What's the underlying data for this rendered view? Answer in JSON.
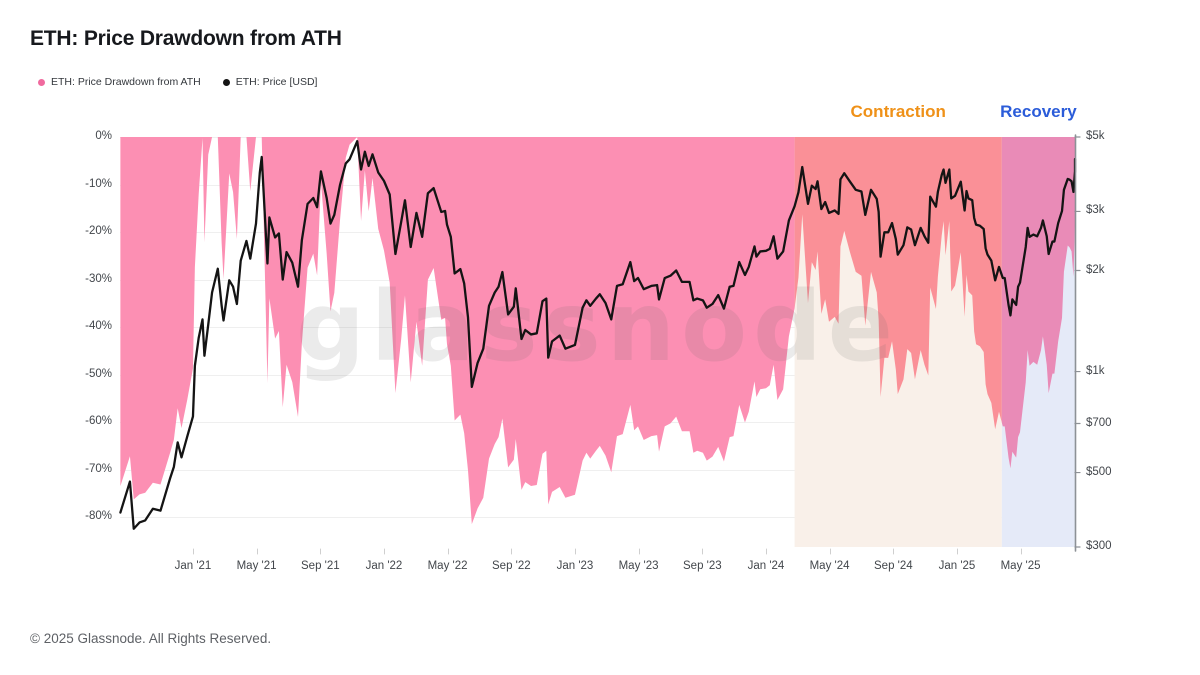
{
  "title": "ETH: Price Drawdown from ATH",
  "footer": "© 2025 Glassnode. All Rights Reserved.",
  "watermark": "glassnode",
  "legend": {
    "drawdown": {
      "label": "ETH: Price Drawdown from ATH",
      "color": "#f06a9e"
    },
    "price": {
      "label": "ETH: Price [USD]",
      "color": "#141414"
    }
  },
  "phases": [
    {
      "label": "Contraction",
      "text_color": "#ef9118",
      "band_color": "#f9f0e9",
      "area_color": "#fa9097",
      "t_start": 2024.15,
      "t_end": 2025.235
    },
    {
      "label": "Recovery",
      "text_color": "#2b5cd9",
      "band_color": "#e5eaf8",
      "area_color": "#e98bb7",
      "t_start": 2025.235,
      "t_end": 2025.618
    }
  ],
  "chart_data": {
    "type": "area+line",
    "title": "ETH: Price Drawdown from ATH",
    "grid": true,
    "x_range_decimal_years": [
      2020.618,
      2025.618
    ],
    "x_ticks": [
      {
        "label": "Jan '21",
        "t": 2021.0
      },
      {
        "label": "May '21",
        "t": 2021.333
      },
      {
        "label": "Sep '21",
        "t": 2021.667
      },
      {
        "label": "Jan '22",
        "t": 2022.0
      },
      {
        "label": "May '22",
        "t": 2022.333
      },
      {
        "label": "Sep '22",
        "t": 2022.667
      },
      {
        "label": "Jan '23",
        "t": 2023.0
      },
      {
        "label": "May '23",
        "t": 2023.333
      },
      {
        "label": "Sep '23",
        "t": 2023.667
      },
      {
        "label": "Jan '24",
        "t": 2024.0
      },
      {
        "label": "May '24",
        "t": 2024.333
      },
      {
        "label": "Sep '24",
        "t": 2024.667
      },
      {
        "label": "Jan '25",
        "t": 2025.0
      },
      {
        "label": "May '25",
        "t": 2025.333
      }
    ],
    "y_left": {
      "name": "Price Drawdown from ATH",
      "unit": "%",
      "ticks": [
        {
          "label": "0%",
          "value": 0
        },
        {
          "label": "-10%",
          "value": -10
        },
        {
          "label": "-20%",
          "value": -20
        },
        {
          "label": "-30%",
          "value": -30
        },
        {
          "label": "-40%",
          "value": -40
        },
        {
          "label": "-50%",
          "value": -50
        },
        {
          "label": "-60%",
          "value": -60
        },
        {
          "label": "-70%",
          "value": -70
        },
        {
          "label": "-80%",
          "value": -80
        }
      ],
      "range": [
        0,
        -86.3
      ]
    },
    "y_right": {
      "name": "ETH Price",
      "unit": "USD",
      "scale": "log",
      "ticks": [
        {
          "label": "$5k",
          "value": 5000
        },
        {
          "label": "$3k",
          "value": 3000
        },
        {
          "label": "$2k",
          "value": 2000
        },
        {
          "label": "$1k",
          "value": 1000
        },
        {
          "label": "$700",
          "value": 700
        },
        {
          "label": "$500",
          "value": 500
        },
        {
          "label": "$300",
          "value": 300
        }
      ],
      "range": [
        300,
        5000
      ]
    },
    "series": [
      {
        "name": "ETH: Price Drawdown from ATH",
        "type": "area",
        "unit": "%",
        "color_default": "#fc8fb3",
        "derived": "drawdown = price / running_ath - 1, running_ath seeded with initial_ath_usd",
        "initial_ath_usd": 1433
      },
      {
        "name": "ETH: Price [USD]",
        "type": "line",
        "color": "#141414",
        "points_format": [
          "decimal_year",
          "usd"
        ],
        "points": [
          [
            2020.62,
            380
          ],
          [
            2020.67,
            470
          ],
          [
            2020.69,
            340
          ],
          [
            2020.72,
            355
          ],
          [
            2020.75,
            360
          ],
          [
            2020.79,
            390
          ],
          [
            2020.83,
            385
          ],
          [
            2020.88,
            480
          ],
          [
            2020.9,
            520
          ],
          [
            2020.92,
            615
          ],
          [
            2020.94,
            555
          ],
          [
            2020.97,
            640
          ],
          [
            2021.0,
            735
          ],
          [
            2021.01,
            1040
          ],
          [
            2021.03,
            1260
          ],
          [
            2021.05,
            1430
          ],
          [
            2021.06,
            1115
          ],
          [
            2021.08,
            1380
          ],
          [
            2021.1,
            1720
          ],
          [
            2021.13,
            2025
          ],
          [
            2021.15,
            1575
          ],
          [
            2021.16,
            1420
          ],
          [
            2021.19,
            1870
          ],
          [
            2021.21,
            1790
          ],
          [
            2021.23,
            1590
          ],
          [
            2021.25,
            2140
          ],
          [
            2021.28,
            2450
          ],
          [
            2021.3,
            2170
          ],
          [
            2021.33,
            2760
          ],
          [
            2021.35,
            3920
          ],
          [
            2021.36,
            4360
          ],
          [
            2021.39,
            2100
          ],
          [
            2021.4,
            2880
          ],
          [
            2021.43,
            2510
          ],
          [
            2021.45,
            2580
          ],
          [
            2021.47,
            1880
          ],
          [
            2021.49,
            2270
          ],
          [
            2021.52,
            2110
          ],
          [
            2021.55,
            1790
          ],
          [
            2021.57,
            2460
          ],
          [
            2021.6,
            3160
          ],
          [
            2021.63,
            3290
          ],
          [
            2021.65,
            3090
          ],
          [
            2021.67,
            3950
          ],
          [
            2021.7,
            3290
          ],
          [
            2021.72,
            2760
          ],
          [
            2021.74,
            2930
          ],
          [
            2021.77,
            3600
          ],
          [
            2021.8,
            4170
          ],
          [
            2021.82,
            4290
          ],
          [
            2021.86,
            4860
          ],
          [
            2021.88,
            4000
          ],
          [
            2021.9,
            4520
          ],
          [
            2021.92,
            4100
          ],
          [
            2021.94,
            4440
          ],
          [
            2021.97,
            3920
          ],
          [
            2022.0,
            3700
          ],
          [
            2022.03,
            3370
          ],
          [
            2022.06,
            2240
          ],
          [
            2022.09,
            2790
          ],
          [
            2022.11,
            3240
          ],
          [
            2022.14,
            2350
          ],
          [
            2022.17,
            2970
          ],
          [
            2022.2,
            2520
          ],
          [
            2022.23,
            3400
          ],
          [
            2022.26,
            3520
          ],
          [
            2022.3,
            2990
          ],
          [
            2022.32,
            3010
          ],
          [
            2022.33,
            2740
          ],
          [
            2022.35,
            2520
          ],
          [
            2022.37,
            1960
          ],
          [
            2022.4,
            2020
          ],
          [
            2022.42,
            1830
          ],
          [
            2022.44,
            1450
          ],
          [
            2022.46,
            900
          ],
          [
            2022.49,
            1060
          ],
          [
            2022.52,
            1170
          ],
          [
            2022.55,
            1570
          ],
          [
            2022.58,
            1720
          ],
          [
            2022.6,
            1790
          ],
          [
            2022.62,
            1980
          ],
          [
            2022.65,
            1480
          ],
          [
            2022.68,
            1560
          ],
          [
            2022.69,
            1770
          ],
          [
            2022.72,
            1250
          ],
          [
            2022.74,
            1330
          ],
          [
            2022.77,
            1290
          ],
          [
            2022.8,
            1300
          ],
          [
            2022.83,
            1620
          ],
          [
            2022.85,
            1650
          ],
          [
            2022.86,
            1100
          ],
          [
            2022.88,
            1230
          ],
          [
            2022.92,
            1280
          ],
          [
            2022.95,
            1170
          ],
          [
            2023.0,
            1200
          ],
          [
            2023.04,
            1550
          ],
          [
            2023.06,
            1630
          ],
          [
            2023.08,
            1570
          ],
          [
            2023.11,
            1650
          ],
          [
            2023.13,
            1700
          ],
          [
            2023.16,
            1600
          ],
          [
            2023.19,
            1430
          ],
          [
            2023.22,
            1800
          ],
          [
            2023.25,
            1820
          ],
          [
            2023.29,
            2120
          ],
          [
            2023.31,
            1860
          ],
          [
            2023.33,
            1900
          ],
          [
            2023.36,
            1760
          ],
          [
            2023.4,
            1800
          ],
          [
            2023.43,
            1810
          ],
          [
            2023.44,
            1640
          ],
          [
            2023.47,
            1900
          ],
          [
            2023.5,
            1930
          ],
          [
            2023.53,
            2000
          ],
          [
            2023.56,
            1850
          ],
          [
            2023.6,
            1850
          ],
          [
            2023.62,
            1630
          ],
          [
            2023.64,
            1650
          ],
          [
            2023.67,
            1630
          ],
          [
            2023.69,
            1550
          ],
          [
            2023.72,
            1590
          ],
          [
            2023.75,
            1690
          ],
          [
            2023.78,
            1540
          ],
          [
            2023.81,
            1790
          ],
          [
            2023.83,
            1800
          ],
          [
            2023.86,
            2120
          ],
          [
            2023.89,
            1940
          ],
          [
            2023.91,
            2050
          ],
          [
            2023.94,
            2360
          ],
          [
            2023.95,
            2200
          ],
          [
            2023.97,
            2280
          ],
          [
            2024.0,
            2290
          ],
          [
            2024.02,
            2320
          ],
          [
            2024.04,
            2530
          ],
          [
            2024.06,
            2170
          ],
          [
            2024.09,
            2280
          ],
          [
            2024.12,
            2820
          ],
          [
            2024.15,
            3110
          ],
          [
            2024.17,
            3420
          ],
          [
            2024.19,
            4070
          ],
          [
            2024.22,
            3160
          ],
          [
            2024.24,
            3580
          ],
          [
            2024.26,
            3500
          ],
          [
            2024.27,
            3690
          ],
          [
            2024.29,
            3050
          ],
          [
            2024.31,
            3200
          ],
          [
            2024.33,
            2970
          ],
          [
            2024.36,
            3020
          ],
          [
            2024.38,
            2950
          ],
          [
            2024.39,
            3740
          ],
          [
            2024.41,
            3900
          ],
          [
            2024.44,
            3680
          ],
          [
            2024.47,
            3480
          ],
          [
            2024.5,
            3440
          ],
          [
            2024.52,
            2930
          ],
          [
            2024.55,
            3480
          ],
          [
            2024.58,
            3270
          ],
          [
            2024.59,
            2990
          ],
          [
            2024.6,
            2200
          ],
          [
            2024.62,
            2600
          ],
          [
            2024.64,
            2600
          ],
          [
            2024.66,
            2770
          ],
          [
            2024.68,
            2480
          ],
          [
            2024.69,
            2230
          ],
          [
            2024.72,
            2380
          ],
          [
            2024.74,
            2690
          ],
          [
            2024.76,
            2650
          ],
          [
            2024.78,
            2380
          ],
          [
            2024.81,
            2680
          ],
          [
            2024.83,
            2530
          ],
          [
            2024.85,
            2420
          ],
          [
            2024.86,
            3320
          ],
          [
            2024.89,
            3100
          ],
          [
            2024.9,
            3430
          ],
          [
            2024.92,
            3850
          ],
          [
            2024.93,
            4000
          ],
          [
            2024.94,
            3650
          ],
          [
            2024.96,
            4000
          ],
          [
            2024.97,
            3280
          ],
          [
            2024.99,
            3340
          ],
          [
            2025.02,
            3680
          ],
          [
            2025.04,
            3020
          ],
          [
            2025.05,
            3450
          ],
          [
            2025.06,
            3280
          ],
          [
            2025.08,
            3240
          ],
          [
            2025.09,
            2870
          ],
          [
            2025.1,
            2740
          ],
          [
            2025.12,
            2720
          ],
          [
            2025.14,
            2660
          ],
          [
            2025.15,
            2330
          ],
          [
            2025.16,
            2230
          ],
          [
            2025.18,
            2140
          ],
          [
            2025.2,
            1870
          ],
          [
            2025.22,
            2050
          ],
          [
            2025.24,
            1900
          ],
          [
            2025.25,
            1900
          ],
          [
            2025.27,
            1580
          ],
          [
            2025.28,
            1470
          ],
          [
            2025.29,
            1640
          ],
          [
            2025.31,
            1580
          ],
          [
            2025.32,
            1790
          ],
          [
            2025.33,
            1840
          ],
          [
            2025.36,
            2350
          ],
          [
            2025.37,
            2680
          ],
          [
            2025.38,
            2520
          ],
          [
            2025.4,
            2560
          ],
          [
            2025.42,
            2530
          ],
          [
            2025.44,
            2680
          ],
          [
            2025.45,
            2820
          ],
          [
            2025.47,
            2530
          ],
          [
            2025.48,
            2240
          ],
          [
            2025.5,
            2440
          ],
          [
            2025.51,
            2440
          ],
          [
            2025.53,
            2770
          ],
          [
            2025.55,
            3010
          ],
          [
            2025.56,
            3480
          ],
          [
            2025.58,
            3750
          ],
          [
            2025.59,
            3730
          ],
          [
            2025.6,
            3690
          ],
          [
            2025.61,
            3430
          ],
          [
            2025.62,
            3950
          ],
          [
            2025.63,
            4300
          ]
        ]
      }
    ]
  }
}
